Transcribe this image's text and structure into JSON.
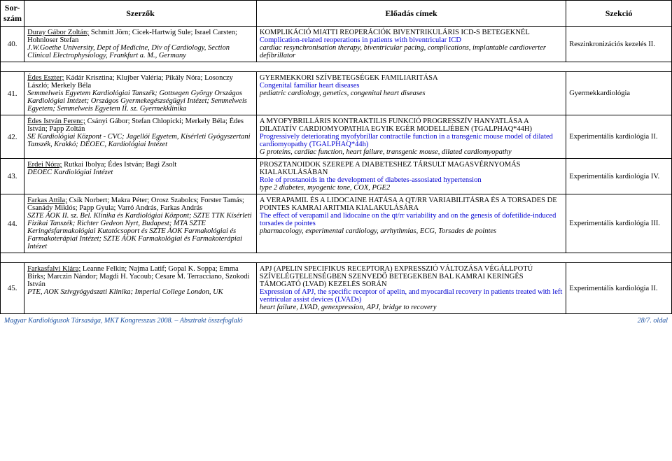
{
  "header": {
    "col_num": "Sor-\nszám",
    "col_authors": "Szerzők",
    "col_titles": "Előadás címek",
    "col_section": "Szekció"
  },
  "rows": [
    {
      "num": "40.",
      "auth_lead": "Duray Gábor Zoltán;",
      "auth_rest": " Schmitt Jörn; Cicek-Hartwig Sule; Israel Carsten; Hohnloser Stefan",
      "affil": "J.W.Goethe University, Dept of Medicine, Div of Cardiology, Section Clinical Electrophysiology, Frankfurt a. M., Germany",
      "title_hu": "KOMPLIKÁCIÓ MIATTI REOPERÁCIÓK BIVENTRIKULÁRIS ICD-S BETEGEKNÉL",
      "title_en": "Complication-related reoperations in patients with biventricular ICD",
      "keywords": "cardiac resynchronisation therapy, biventricular pacing, complications, implantable cardioverter defibrillator",
      "section": "Reszinkronizációs kezelés II."
    },
    {
      "num": "41.",
      "auth_lead": "Édes Eszter;",
      "auth_rest": " Kádár Krisztina; Klujber Valéria; Pikály Nóra; Losonczy László; Merkely Béla",
      "affil": "Semmelweis Egyetem Kardiológiai Tanszék; Gottsegen György Országos Kardiológiai Intézet; Országos Gyermekegészségügyi Intézet; Semmelweis Egyetem; Semmelweis Egyetem II. sz. Gyermekklinika",
      "title_hu": "GYERMEKKORI SZÍVBETEGSÉGEK FAMILIARITÁSA",
      "title_en": "Congenital familiar heart diseases",
      "keywords": "pediatric cardiology, genetics, congenital heart diseases",
      "section": "Gyermekkardiológia"
    },
    {
      "num": "42.",
      "auth_lead": "Édes István Ferenc;",
      "auth_rest": " Csányi Gábor; Stefan Chlopicki; Merkely Béla; Édes István; Papp Zoltán",
      "affil": "SE Kardiológiai Központ - CVC; Jagellói Egyetem, Kísérleti Gyógyszertani Tanszék, Krakkó; DEOEC, Kardiológiai Intézet",
      "title_hu": "A MYOFYBRILLÁRIS KONTRAKTILIS FUNKCIÓ PROGRESSZÍV HANYATLÁSA A DILATATÍV CARDIOMYOPATHIA EGYIK EGÉR MODELLJÉBEN (TGALPHAQ*44H)",
      "title_en": "Progressively deteriorating myofybrillar contractile function in a transgenic mouse model of dilated cardiomyopathy (TGALPHAQ*44h)",
      "keywords": "G proteins, cardiac function, heart failure, transgenic mouse, dilated cardiomyopathy",
      "section": "Experimentális kardiológia II."
    },
    {
      "num": "43.",
      "auth_lead": "Erdei Nóra;",
      "auth_rest": " Rutkai Ibolya; Édes István; Bagi Zsolt",
      "affil": "DEOEC Kardiológiai Intézet",
      "title_hu": "PROSZTANOIDOK SZEREPE A DIABETESHEZ TÁRSULT MAGASVÉRNYOMÁS KIALAKULÁSÁBAN",
      "title_en": "Role of prostanoids in the development of diabetes-assosiated hypertension",
      "keywords": "type 2 diabetes, myogenic tone, COX, PGE2",
      "section": "Experimentális kardiológia IV."
    },
    {
      "num": "44.",
      "auth_lead": "Farkas Attila;",
      "auth_rest": " Csík Norbert; Makra Péter; Orosz Szabolcs; Forster Tamás; Csanády Miklós; Papp Gyula; Varró András, Farkas András",
      "affil": "SZTE ÁOK II. sz. Bel. Klinika és Kardiológiai Központ; SZTE TTK Kísérleti Fizikai Tanszék; Richter Gedeon Nyrt, Budapest; MTA SZTE Keringésfarmakológiai Kutatócsoport és SZTE ÁOK Farmakológiai és Farmakoterápiai Intézet; SZTE ÁOK Farmakológiai és Farmakoterápiai Intézet",
      "title_hu": "A VERAPAMIL ÉS A LIDOCAINE HATÁSA A QT/RR VARIABILITÁSRA ÉS A TORSADES DE POINTES KAMRAI ARITMIA KIALAKULÁSÁRA",
      "title_en": "The effect of verapamil and lidocaine on the qt/rr variability and on the genesis of dofetilide-induced torsades de pointes",
      "keywords": "pharmacology, experimental cardiology, arrhythmias, ECG, Torsades de pointes",
      "section": "Experimentális kardiológia III."
    },
    {
      "num": "45.",
      "auth_lead": "Farkasfalvi Klára;",
      "auth_rest": " Leanne Felkin; Najma Latif; Gopal K. Soppa; Emma Birks; Marczin Nándor; Magdi H. Yacoub; Cesare M. Terracciano, Szokodi István",
      "affil": "PTE, AOK Szívgyógyászati Klinika; Imperial College London, UK",
      "title_hu": "APJ (APELIN SPECIFIKUS RECEPTORA) EXPRESSZIÓ VÁLTOZÁSA VÉGÁLLPOTÚ SZÍVELÉGTELENSÉGBEN SZENVEDŐ BETEGEKBEN BAL KAMRAI KERINGÉS TÁMOGATÓ (LVAD) KEZELÉS SORÁN",
      "title_en": "Expression of APJ, the specific receptor of apelin, and myocardial recovery in patients treated with left ventricular assist devices (LVADs)",
      "keywords": "heart failure, LVAD, genexpression, APJ, bridge to recovery",
      "section": "Experimentális kardiológia II."
    }
  ],
  "footer": {
    "left": "Magyar Kardiológusok Társasága, MKT Kongresszus 2008. – Absztrakt összefoglaló",
    "right": "28/7. oldal"
  }
}
